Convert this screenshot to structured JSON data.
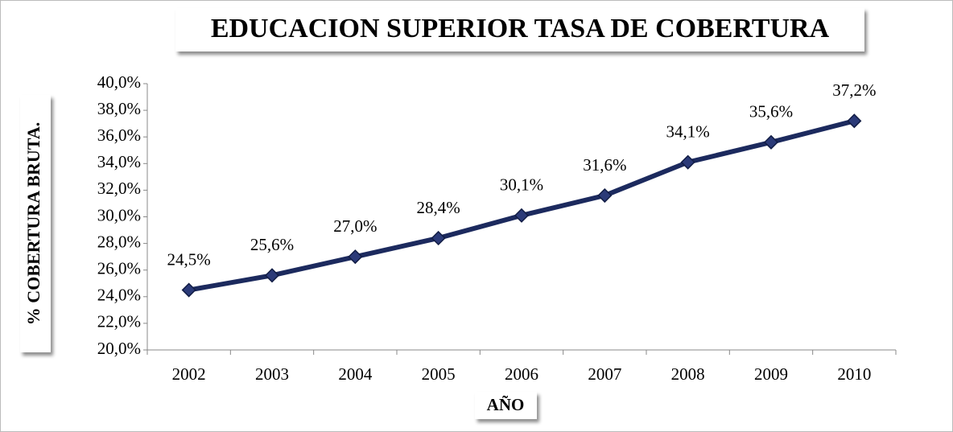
{
  "chart_data": {
    "type": "line",
    "title": "EDUCACION SUPERIOR TASA DE COBERTURA",
    "x_label": "AÑO",
    "y_label": "% COBERTURA BRUTA.",
    "categories": [
      "2002",
      "2003",
      "2004",
      "2005",
      "2006",
      "2007",
      "2008",
      "2009",
      "2010"
    ],
    "values": [
      24.5,
      25.6,
      27.0,
      28.4,
      30.1,
      31.6,
      34.1,
      35.6,
      37.2
    ],
    "value_labels": [
      "24,5%",
      "25,6%",
      "27,0%",
      "28,4%",
      "30,1%",
      "31,6%",
      "34,1%",
      "35,6%",
      "37,2%"
    ],
    "color": "#1c2a5e",
    "ylim": [
      20,
      40
    ],
    "yticks": [
      {
        "value": 20,
        "label": "20,0%"
      },
      {
        "value": 22,
        "label": "22,0%"
      },
      {
        "value": 24,
        "label": "24,0%"
      },
      {
        "value": 26,
        "label": "26,0%"
      },
      {
        "value": 28,
        "label": "28,0%"
      },
      {
        "value": 30,
        "label": "30,0%"
      },
      {
        "value": 32,
        "label": "32,0%"
      },
      {
        "value": 34,
        "label": "34,0%"
      },
      {
        "value": 36,
        "label": "36,0%"
      },
      {
        "value": 38,
        "label": "38,0%"
      },
      {
        "value": 40,
        "label": "40,0%"
      }
    ],
    "grid": false
  }
}
